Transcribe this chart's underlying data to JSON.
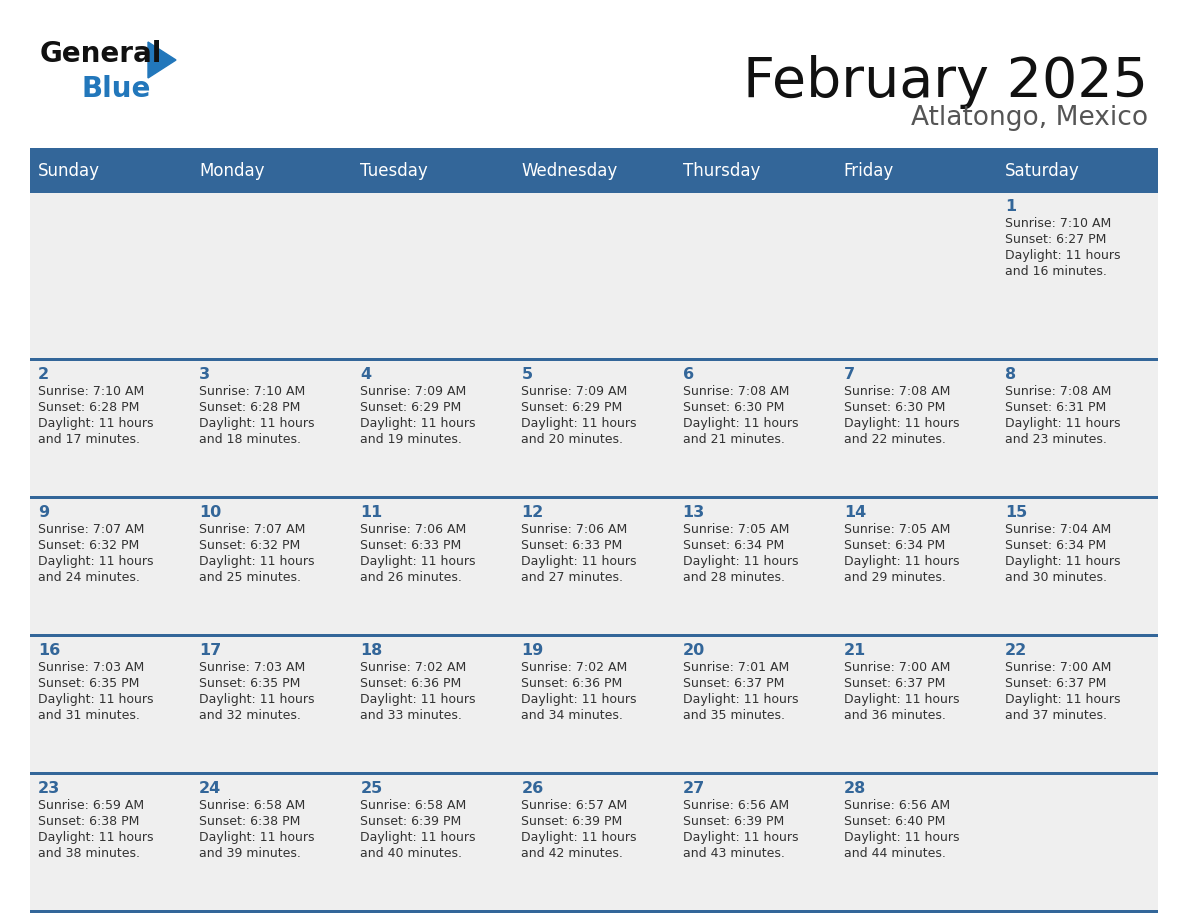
{
  "title": "February 2025",
  "subtitle": "Atlatongo, Mexico",
  "days_of_week": [
    "Sunday",
    "Monday",
    "Tuesday",
    "Wednesday",
    "Thursday",
    "Friday",
    "Saturday"
  ],
  "header_bg": "#336699",
  "header_text": "#FFFFFF",
  "cell_bg": "#EFEFEF",
  "row_line_color": "#336699",
  "text_color": "#333333",
  "day_num_color": "#336699",
  "logo_blue": "#2277BB",
  "logo_black": "#111111",
  "title_color": "#111111",
  "subtitle_color": "#555555",
  "calendar": [
    [
      null,
      null,
      null,
      null,
      null,
      null,
      {
        "day": 1,
        "sunrise": "7:10 AM",
        "sunset": "6:27 PM",
        "daylight": "11 hours and 16 minutes."
      }
    ],
    [
      {
        "day": 2,
        "sunrise": "7:10 AM",
        "sunset": "6:28 PM",
        "daylight": "11 hours and 17 minutes."
      },
      {
        "day": 3,
        "sunrise": "7:10 AM",
        "sunset": "6:28 PM",
        "daylight": "11 hours and 18 minutes."
      },
      {
        "day": 4,
        "sunrise": "7:09 AM",
        "sunset": "6:29 PM",
        "daylight": "11 hours and 19 minutes."
      },
      {
        "day": 5,
        "sunrise": "7:09 AM",
        "sunset": "6:29 PM",
        "daylight": "11 hours and 20 minutes."
      },
      {
        "day": 6,
        "sunrise": "7:08 AM",
        "sunset": "6:30 PM",
        "daylight": "11 hours and 21 minutes."
      },
      {
        "day": 7,
        "sunrise": "7:08 AM",
        "sunset": "6:30 PM",
        "daylight": "11 hours and 22 minutes."
      },
      {
        "day": 8,
        "sunrise": "7:08 AM",
        "sunset": "6:31 PM",
        "daylight": "11 hours and 23 minutes."
      }
    ],
    [
      {
        "day": 9,
        "sunrise": "7:07 AM",
        "sunset": "6:32 PM",
        "daylight": "11 hours and 24 minutes."
      },
      {
        "day": 10,
        "sunrise": "7:07 AM",
        "sunset": "6:32 PM",
        "daylight": "11 hours and 25 minutes."
      },
      {
        "day": 11,
        "sunrise": "7:06 AM",
        "sunset": "6:33 PM",
        "daylight": "11 hours and 26 minutes."
      },
      {
        "day": 12,
        "sunrise": "7:06 AM",
        "sunset": "6:33 PM",
        "daylight": "11 hours and 27 minutes."
      },
      {
        "day": 13,
        "sunrise": "7:05 AM",
        "sunset": "6:34 PM",
        "daylight": "11 hours and 28 minutes."
      },
      {
        "day": 14,
        "sunrise": "7:05 AM",
        "sunset": "6:34 PM",
        "daylight": "11 hours and 29 minutes."
      },
      {
        "day": 15,
        "sunrise": "7:04 AM",
        "sunset": "6:34 PM",
        "daylight": "11 hours and 30 minutes."
      }
    ],
    [
      {
        "day": 16,
        "sunrise": "7:03 AM",
        "sunset": "6:35 PM",
        "daylight": "11 hours and 31 minutes."
      },
      {
        "day": 17,
        "sunrise": "7:03 AM",
        "sunset": "6:35 PM",
        "daylight": "11 hours and 32 minutes."
      },
      {
        "day": 18,
        "sunrise": "7:02 AM",
        "sunset": "6:36 PM",
        "daylight": "11 hours and 33 minutes."
      },
      {
        "day": 19,
        "sunrise": "7:02 AM",
        "sunset": "6:36 PM",
        "daylight": "11 hours and 34 minutes."
      },
      {
        "day": 20,
        "sunrise": "7:01 AM",
        "sunset": "6:37 PM",
        "daylight": "11 hours and 35 minutes."
      },
      {
        "day": 21,
        "sunrise": "7:00 AM",
        "sunset": "6:37 PM",
        "daylight": "11 hours and 36 minutes."
      },
      {
        "day": 22,
        "sunrise": "7:00 AM",
        "sunset": "6:37 PM",
        "daylight": "11 hours and 37 minutes."
      }
    ],
    [
      {
        "day": 23,
        "sunrise": "6:59 AM",
        "sunset": "6:38 PM",
        "daylight": "11 hours and 38 minutes."
      },
      {
        "day": 24,
        "sunrise": "6:58 AM",
        "sunset": "6:38 PM",
        "daylight": "11 hours and 39 minutes."
      },
      {
        "day": 25,
        "sunrise": "6:58 AM",
        "sunset": "6:39 PM",
        "daylight": "11 hours and 40 minutes."
      },
      {
        "day": 26,
        "sunrise": "6:57 AM",
        "sunset": "6:39 PM",
        "daylight": "11 hours and 42 minutes."
      },
      {
        "day": 27,
        "sunrise": "6:56 AM",
        "sunset": "6:39 PM",
        "daylight": "11 hours and 43 minutes."
      },
      {
        "day": 28,
        "sunrise": "6:56 AM",
        "sunset": "6:40 PM",
        "daylight": "11 hours and 44 minutes."
      },
      null
    ]
  ]
}
